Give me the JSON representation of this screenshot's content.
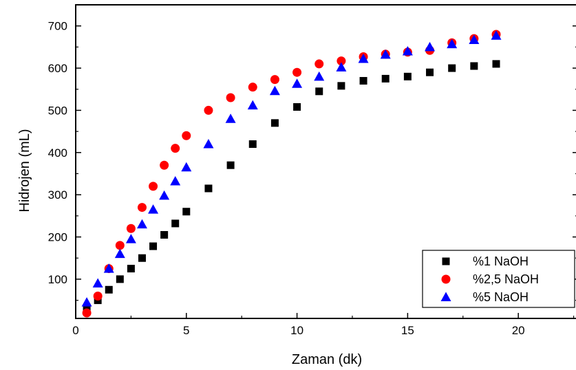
{
  "chart_data": {
    "type": "scatter",
    "title": "",
    "xlabel": "Zaman (dk)",
    "ylabel": "Hidrojen (mL)",
    "xlim": [
      0,
      22.7
    ],
    "ylim": [
      7,
      750
    ],
    "xticks": [
      0,
      5,
      10,
      15,
      20
    ],
    "yticks": [
      100,
      200,
      300,
      400,
      500,
      600,
      700
    ],
    "grid": false,
    "legend_position": "bottom-right",
    "series": [
      {
        "name": "%1 NaOH",
        "marker": "square",
        "color": "#000000",
        "points": [
          [
            0.5,
            28
          ],
          [
            1,
            50
          ],
          [
            1.5,
            75
          ],
          [
            2,
            100
          ],
          [
            2.5,
            125
          ],
          [
            3,
            150
          ],
          [
            3.5,
            178
          ],
          [
            4,
            205
          ],
          [
            4.5,
            232
          ],
          [
            5,
            260
          ],
          [
            6,
            315
          ],
          [
            7,
            370
          ],
          [
            8,
            420
          ],
          [
            9,
            470
          ],
          [
            10,
            508
          ],
          [
            11,
            545
          ],
          [
            12,
            558
          ],
          [
            13,
            570
          ],
          [
            14,
            575
          ],
          [
            15,
            580
          ],
          [
            16,
            590
          ],
          [
            17,
            600
          ],
          [
            18,
            605
          ],
          [
            19,
            610
          ]
        ]
      },
      {
        "name": "%2,5 NaOH",
        "marker": "circle",
        "color": "#ff0000",
        "points": [
          [
            0.5,
            20
          ],
          [
            1,
            60
          ],
          [
            1.5,
            125
          ],
          [
            2,
            180
          ],
          [
            2.5,
            220
          ],
          [
            3,
            270
          ],
          [
            3.5,
            320
          ],
          [
            4,
            370
          ],
          [
            4.5,
            410
          ],
          [
            5,
            440
          ],
          [
            6,
            500
          ],
          [
            7,
            530
          ],
          [
            8,
            555
          ],
          [
            9,
            573
          ],
          [
            10,
            590
          ],
          [
            11,
            610
          ],
          [
            12,
            617
          ],
          [
            13,
            627
          ],
          [
            14,
            633
          ],
          [
            15,
            638
          ],
          [
            16,
            642
          ],
          [
            17,
            660
          ],
          [
            18,
            670
          ],
          [
            19,
            680
          ]
        ]
      },
      {
        "name": "%5 NaOH",
        "marker": "triangle",
        "color": "#0000ff",
        "points": [
          [
            0.5,
            45
          ],
          [
            1,
            90
          ],
          [
            1.5,
            125
          ],
          [
            2,
            160
          ],
          [
            2.5,
            195
          ],
          [
            3,
            230
          ],
          [
            3.5,
            265
          ],
          [
            4,
            298
          ],
          [
            4.5,
            332
          ],
          [
            5,
            365
          ],
          [
            6,
            420
          ],
          [
            7,
            480
          ],
          [
            8,
            512
          ],
          [
            9,
            546
          ],
          [
            10,
            563
          ],
          [
            11,
            580
          ],
          [
            12,
            602
          ],
          [
            13,
            622
          ],
          [
            14,
            632
          ],
          [
            15,
            640
          ],
          [
            16,
            650
          ],
          [
            17,
            657
          ],
          [
            18,
            667
          ],
          [
            19,
            677
          ]
        ]
      }
    ]
  }
}
